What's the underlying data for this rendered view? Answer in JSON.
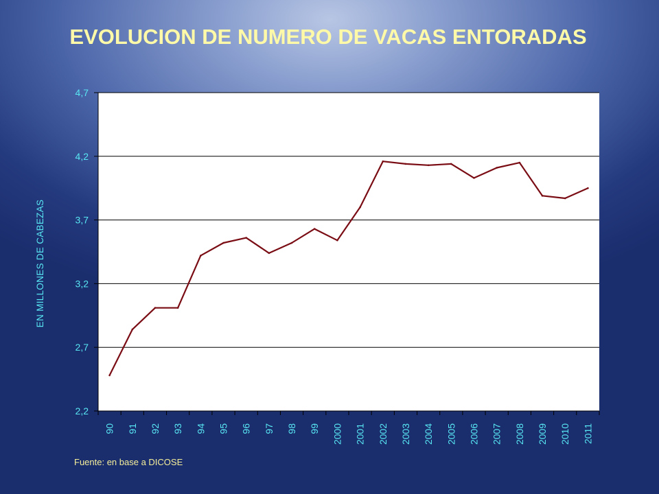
{
  "colors": {
    "title": "#fff9a8",
    "ticks": "#58e6f2",
    "line": "#7a0c14",
    "plot_bg": "#ffffff",
    "grid": "#000000",
    "source": "#f5ef9a"
  },
  "chart_data": {
    "type": "line",
    "title": "EVOLUCION DE NUMERO DE VACAS ENTORADAS",
    "xlabel": "",
    "ylabel": "EN MILLONES DE CABEZAS",
    "categories": [
      "90",
      "91",
      "92",
      "93",
      "94",
      "95",
      "96",
      "97",
      "98",
      "99",
      "2000",
      "2001",
      "2002",
      "2003",
      "2004",
      "2005",
      "2006",
      "2007",
      "2008",
      "2009",
      "2010",
      "2011"
    ],
    "series": [
      {
        "values": [
          2.48,
          2.84,
          3.01,
          3.01,
          3.42,
          3.52,
          3.56,
          3.44,
          3.52,
          3.63,
          3.54,
          3.8,
          4.16,
          4.14,
          4.13,
          4.14,
          4.03,
          4.11,
          4.15,
          3.89,
          3.87,
          3.95
        ]
      }
    ],
    "ylim": [
      2.2,
      4.7
    ],
    "yticks": [
      "2,2",
      "2,7",
      "3,2",
      "3,7",
      "4,2",
      "4,7"
    ],
    "grid": true,
    "legend": "none"
  },
  "footer": {
    "source": "Fuente: en base a DICOSE"
  }
}
